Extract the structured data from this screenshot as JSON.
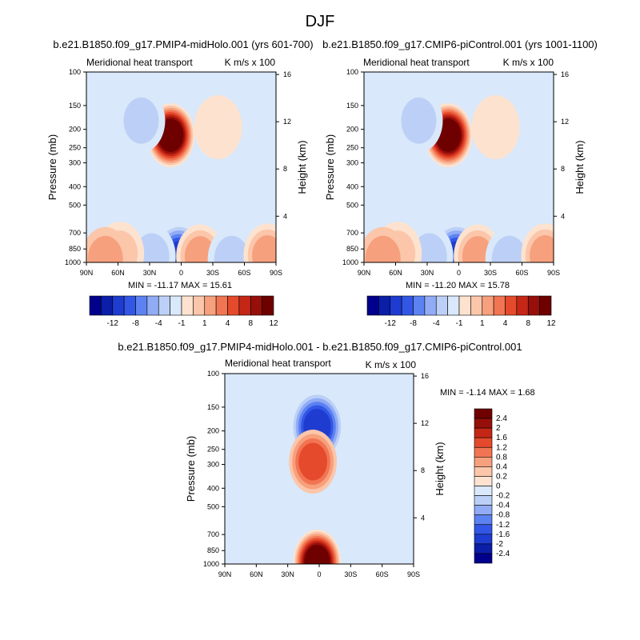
{
  "figure": {
    "title": "DJF"
  },
  "colors": {
    "panel_a_levels": [
      "#00008c",
      "#0a1ea8",
      "#1e3ccf",
      "#3257e6",
      "#5c82f2",
      "#91acf5",
      "#bcd0f7",
      "#d9e8fa",
      "#fde3cf",
      "#fbc6aa",
      "#f7a07d",
      "#f27553",
      "#e54a2c",
      "#c42716",
      "#970f0a",
      "#6e0000"
    ],
    "panel_c_levels": [
      "#00008c",
      "#0a1ea8",
      "#1e3ccf",
      "#3257e6",
      "#5c82f2",
      "#91acf5",
      "#bcd0f7",
      "#d9e8fa",
      "#fde3cf",
      "#fbc6aa",
      "#f7a07d",
      "#f27553",
      "#e54a2c",
      "#c42716",
      "#970f0a",
      "#6e0000"
    ]
  },
  "chart_data": [
    {
      "type": "heatmap",
      "id": "panel_a",
      "title": "b.e21.B1850.f09_g17.PMIP4-midHolo.001 (yrs 601-700)",
      "subtitle_left": "Meridional heat transport",
      "subtitle_right": "K m/s x 100",
      "xlabel": "",
      "ylabel": "Pressure (mb)",
      "y2label": "Height (km)",
      "xticks": [
        "90N",
        "60N",
        "30N",
        "0",
        "30S",
        "60S",
        "90S"
      ],
      "yticks": [
        "100",
        "150",
        "200",
        "250",
        "300",
        "400",
        "500",
        "700",
        "850",
        "1000"
      ],
      "y2ticks": [
        "16",
        "12",
        "8",
        "4"
      ],
      "stats": "MIN = -11.17  MAX =  15.61",
      "colorbar_labels": [
        "-12",
        "-8",
        "-4",
        "-1",
        "1",
        "4",
        "8",
        "12"
      ],
      "features": [
        {
          "lat": 10,
          "p": 215,
          "value": 15.61
        },
        {
          "lat": 38,
          "p": 180,
          "value": -4
        },
        {
          "lat": -35,
          "p": 195,
          "value": 2
        },
        {
          "lat": 2,
          "p": 960,
          "value": -11.17
        },
        {
          "lat": 28,
          "p": 930,
          "value": -4
        },
        {
          "lat": -18,
          "p": 930,
          "value": 6
        },
        {
          "lat": 58,
          "p": 900,
          "value": 3
        },
        {
          "lat": 72,
          "p": 960,
          "value": 5
        },
        {
          "lat": -48,
          "p": 960,
          "value": -4
        },
        {
          "lat": -82,
          "p": 920,
          "value": 6
        }
      ]
    },
    {
      "type": "heatmap",
      "id": "panel_b",
      "title": "b.e21.B1850.f09_g17.CMIP6-piControl.001 (yrs 1001-1100)",
      "subtitle_left": "Meridional heat transport",
      "subtitle_right": "K m/s x 100",
      "xlabel": "",
      "ylabel": "Pressure (mb)",
      "y2label": "Height (km)",
      "xticks": [
        "90N",
        "60N",
        "30N",
        "0",
        "30S",
        "60S",
        "90S"
      ],
      "yticks": [
        "100",
        "150",
        "200",
        "250",
        "300",
        "400",
        "500",
        "700",
        "850",
        "1000"
      ],
      "y2ticks": [
        "16",
        "12",
        "8",
        "4"
      ],
      "stats": "MIN = -11.20  MAX =  15.78",
      "colorbar_labels": [
        "-12",
        "-8",
        "-4",
        "-1",
        "1",
        "4",
        "8",
        "12"
      ],
      "features": [
        {
          "lat": 10,
          "p": 215,
          "value": 15.78
        },
        {
          "lat": 38,
          "p": 180,
          "value": -4
        },
        {
          "lat": -35,
          "p": 195,
          "value": 2
        },
        {
          "lat": 2,
          "p": 960,
          "value": -11.2
        },
        {
          "lat": 28,
          "p": 930,
          "value": -4
        },
        {
          "lat": -18,
          "p": 930,
          "value": 6
        },
        {
          "lat": 58,
          "p": 900,
          "value": 3
        },
        {
          "lat": 72,
          "p": 960,
          "value": 5
        },
        {
          "lat": -48,
          "p": 960,
          "value": -4
        },
        {
          "lat": -82,
          "p": 920,
          "value": 6
        }
      ]
    },
    {
      "type": "heatmap",
      "id": "panel_c",
      "title": "b.e21.B1850.f09_g17.PMIP4-midHolo.001 - b.e21.B1850.f09_g17.CMIP6-piControl.001",
      "subtitle_left": "Meridional heat transport",
      "subtitle_right": "K m/s x 100",
      "xlabel": "",
      "ylabel": "Pressure (mb)",
      "y2label": "Height (km)",
      "xticks": [
        "90N",
        "60N",
        "30N",
        "0",
        "30S",
        "60S",
        "90S"
      ],
      "yticks": [
        "100",
        "150",
        "200",
        "250",
        "300",
        "400",
        "500",
        "700",
        "850",
        "1000"
      ],
      "y2ticks": [
        "16",
        "12",
        "8",
        "4"
      ],
      "stats": "MIN =  -1.14  MAX =   1.68",
      "colorbar_labels": [
        "2.4",
        "2",
        "1.6",
        "1.2",
        "0.8",
        "0.4",
        "0.2",
        "0",
        "-0.2",
        "-0.4",
        "-0.8",
        "-1.2",
        "-1.6",
        "-2",
        "-2.4"
      ],
      "features": [
        {
          "lat": 2,
          "p": 190,
          "value": -1.14
        },
        {
          "lat": 6,
          "p": 290,
          "value": 0.9
        },
        {
          "lat": 2,
          "p": 970,
          "value": 1.68
        }
      ]
    }
  ]
}
